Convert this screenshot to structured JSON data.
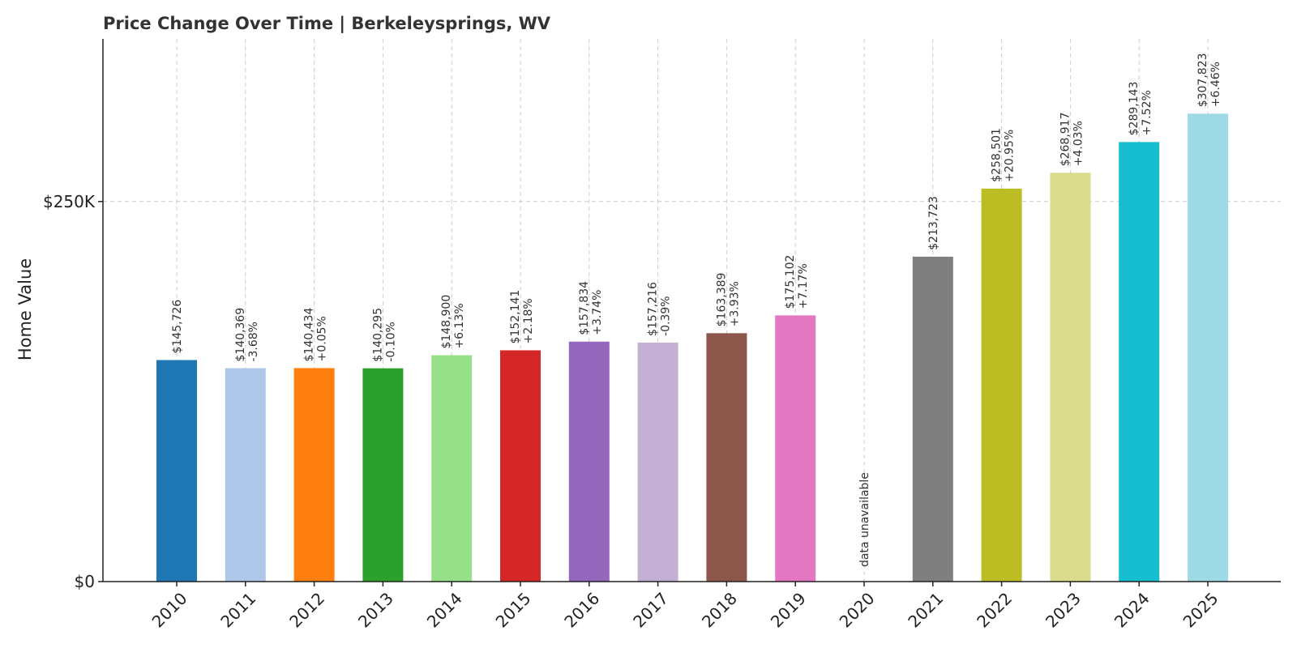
{
  "chart_data": {
    "type": "bar",
    "title": "Price Change Over Time | Berkeleysprings, WV",
    "xlabel": "",
    "ylabel": "Home Value",
    "ylim": [
      0,
      357000
    ],
    "yticks": [
      {
        "value": 0,
        "label": "$0"
      },
      {
        "value": 250000,
        "label": "$250K"
      }
    ],
    "grid": true,
    "categories": [
      "2010",
      "2011",
      "2012",
      "2013",
      "2014",
      "2015",
      "2016",
      "2017",
      "2018",
      "2019",
      "2020",
      "2021",
      "2022",
      "2023",
      "2024",
      "2025"
    ],
    "values": [
      145726,
      140369,
      140434,
      140295,
      148900,
      152141,
      157834,
      157216,
      163389,
      175102,
      null,
      213723,
      258501,
      268917,
      289143,
      307823
    ],
    "value_labels": [
      "$145,726",
      "$140,369",
      "$140,434",
      "$140,295",
      "$148,900",
      "$152,141",
      "$157,834",
      "$157,216",
      "$163,389",
      "$175,102",
      "",
      "$213,723",
      "$258,501",
      "$268,917",
      "$289,143",
      "$307,823"
    ],
    "change_labels": [
      "",
      "-3.68%",
      "+0.05%",
      "-0.10%",
      "+6.13%",
      "+2.18%",
      "+3.74%",
      "-0.39%",
      "+3.93%",
      "+7.17%",
      "",
      "",
      "+20.95%",
      "+4.03%",
      "+7.52%",
      "+6.46%"
    ],
    "missing_label": "data unavailable",
    "colors": [
      "#1f77b4",
      "#aec7e8",
      "#ff7f0e",
      "#2ca02c",
      "#98df8a",
      "#d62728",
      "#9467bd",
      "#c5b0d5",
      "#8c564b",
      "#e377c2",
      "#f7b6d2",
      "#7f7f7f",
      "#bcbd22",
      "#dbdb8d",
      "#17becf",
      "#9edae5"
    ]
  }
}
